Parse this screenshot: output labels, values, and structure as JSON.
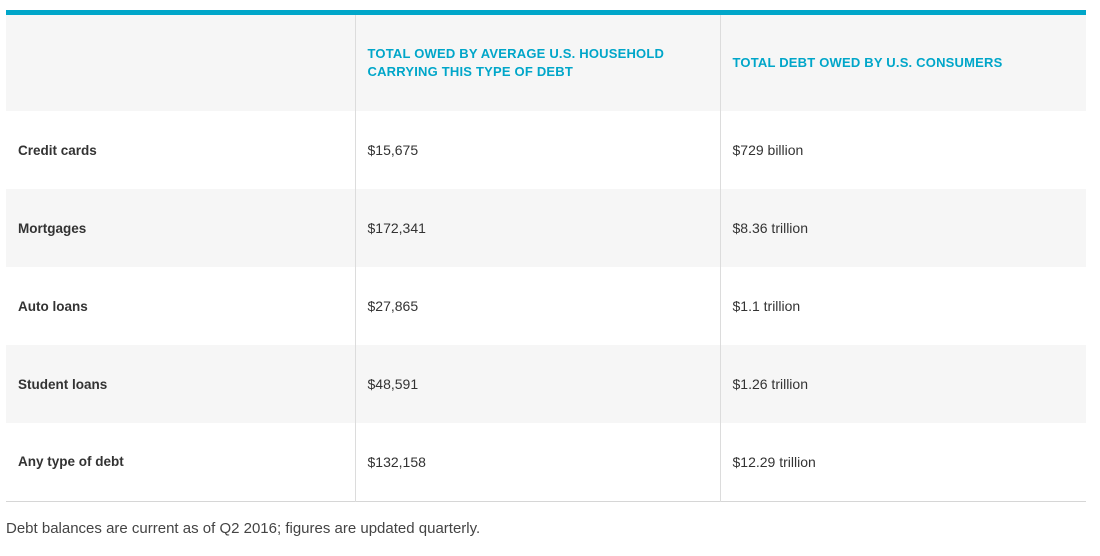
{
  "table": {
    "headers": [
      "",
      "TOTAL OWED BY AVERAGE U.S. HOUSEHOLD CARRYING THIS TYPE OF DEBT",
      "TOTAL DEBT OWED BY U.S. CONSUMERS"
    ],
    "rows": [
      {
        "label": "Credit cards",
        "household": "$15,675",
        "total": "$729 billion"
      },
      {
        "label": "Mortgages",
        "household": "$172,341",
        "total": "$8.36 trillion"
      },
      {
        "label": "Auto loans",
        "household": "$27,865",
        "total": "$1.1 trillion"
      },
      {
        "label": "Student loans",
        "household": "$48,591",
        "total": "$1.26 trillion"
      },
      {
        "label": "Any type of debt",
        "household": "$132,158",
        "total": "$12.29 trillion"
      }
    ]
  },
  "footnote": "Debt balances are current as of Q2 2016; figures are updated quarterly.",
  "colors": {
    "accent": "#00a6c9",
    "row_shade": "#f6f6f6"
  }
}
